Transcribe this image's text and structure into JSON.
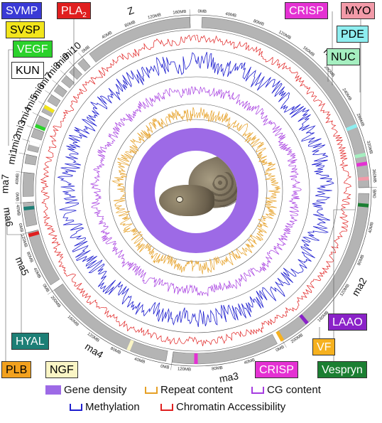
{
  "chromosomes": [
    {
      "name": "ma1",
      "ticks": [
        "0MB",
        "40MB",
        "80MB",
        "120MB",
        "160MB",
        "200MB",
        "240MB",
        "280MB",
        "320MB",
        "360MB"
      ]
    },
    {
      "name": "ma2",
      "ticks": [
        "0MB",
        "40MB",
        "80MB",
        "120MB",
        "160MB",
        "200MB"
      ]
    },
    {
      "name": "ma3",
      "ticks": [
        "0MB",
        "40MB",
        "80MB",
        "120MB"
      ]
    },
    {
      "name": "ma4",
      "ticks": [
        "0MB",
        "40MB",
        "80MB",
        "120MB",
        "160MB",
        "200MB"
      ]
    },
    {
      "name": "ma5",
      "ticks": [
        "0MB",
        "40MB",
        "80MB",
        "120MB"
      ]
    },
    {
      "name": "ma6",
      "ticks": [
        "0MB",
        "40MB"
      ]
    },
    {
      "name": "ma7",
      "ticks": [
        "0MB",
        "40MB"
      ]
    },
    {
      "name": "mi1",
      "ticks": []
    },
    {
      "name": "mi2",
      "ticks": []
    },
    {
      "name": "mi3",
      "ticks": []
    },
    {
      "name": "mi4",
      "ticks": []
    },
    {
      "name": "mi5",
      "ticks": []
    },
    {
      "name": "mi6",
      "ticks": []
    },
    {
      "name": "mi7",
      "ticks": []
    },
    {
      "name": "mi8",
      "ticks": []
    },
    {
      "name": "mi9",
      "ticks": []
    },
    {
      "name": "mi10",
      "ticks": []
    },
    {
      "name": "Z",
      "ticks": [
        "0MB",
        "40MB",
        "80MB",
        "120MB",
        "160MB"
      ]
    }
  ],
  "venom_genes": [
    {
      "label": "SVMP",
      "bg": "#3a3ad6",
      "fg": "#ffffff"
    },
    {
      "label": "PLA",
      "sub": "2",
      "bg": "#e01f1f",
      "fg": "#ffffff"
    },
    {
      "label": "SVSP",
      "bg": "#f2e51b",
      "fg": "#000000"
    },
    {
      "label": "VEGF",
      "bg": "#2bd22b",
      "fg": "#ffffff"
    },
    {
      "label": "KUN",
      "bg": "#ffffff",
      "fg": "#000000"
    },
    {
      "label": "CRISP",
      "bg": "#e431d3",
      "fg": "#ffffff"
    },
    {
      "label": "MYO",
      "bg": "#f29aa8",
      "fg": "#000000"
    },
    {
      "label": "PDE",
      "bg": "#8eeef0",
      "fg": "#000000"
    },
    {
      "label": "NUC",
      "bg": "#a5efc0",
      "fg": "#000000"
    },
    {
      "label": "LAAO",
      "bg": "#8a22c8",
      "fg": "#ffffff"
    },
    {
      "label": "VF",
      "bg": "#f6b11f",
      "fg": "#ffffff"
    },
    {
      "label": "Vespryn",
      "bg": "#1b7f32",
      "fg": "#ffffff"
    },
    {
      "label": "CRISP",
      "bg": "#e431d3",
      "fg": "#ffffff"
    },
    {
      "label": "NGF",
      "bg": "#faf5c5",
      "fg": "#000000"
    },
    {
      "label": "PLB",
      "bg": "#f2a11e",
      "fg": "#000000"
    },
    {
      "label": "HYAL",
      "bg": "#1d7f76",
      "fg": "#ffffff"
    }
  ],
  "legend": [
    {
      "label": "Gene density",
      "color": "#9d6ae6",
      "style": "fill"
    },
    {
      "label": "Repeat content",
      "color": "#e6a026",
      "style": "line"
    },
    {
      "label": "CG content",
      "color": "#a63de0",
      "style": "line"
    },
    {
      "label": "Methylation",
      "color": "#1f1fcf",
      "style": "line"
    },
    {
      "label": "Chromatin Accessibility",
      "color": "#e02020",
      "style": "line"
    }
  ],
  "colors": {
    "ideogram": "#b4b4b4",
    "chromatin": "#e02020",
    "methylation": "#1f1fcf",
    "cg": "#a63de0",
    "repeat": "#e6a026",
    "gene_density": "#9d6ae6"
  }
}
